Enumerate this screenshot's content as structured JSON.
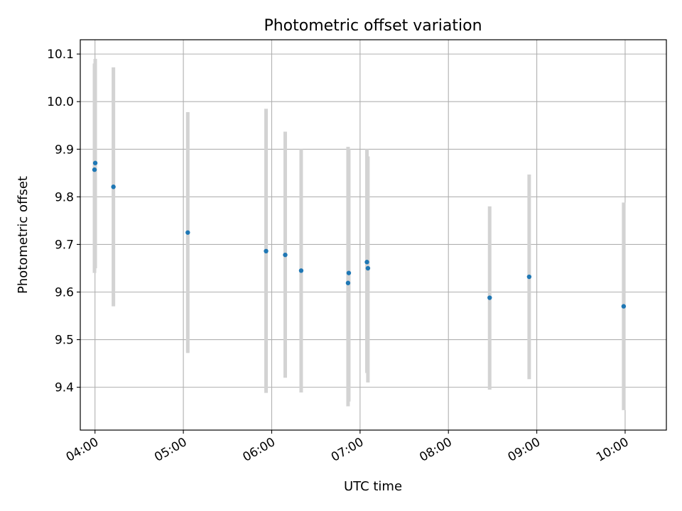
{
  "chart_data": {
    "type": "scatter",
    "title": "Photometric offset variation",
    "xlabel": "UTC time",
    "ylabel": "Photometric offset",
    "x_format": "HH:MM",
    "xlim": [
      "03:50",
      "10:28"
    ],
    "ylim": [
      9.31,
      10.13
    ],
    "x_ticks": [
      "04:00",
      "05:00",
      "06:00",
      "07:00",
      "08:00",
      "09:00",
      "10:00"
    ],
    "y_ticks": [
      9.4,
      9.5,
      9.6,
      9.7,
      9.8,
      9.9,
      10.0,
      10.1
    ],
    "y_tick_labels": [
      "9.4",
      "9.5",
      "9.6",
      "9.7",
      "9.8",
      "9.9",
      "10.0",
      "10.1"
    ],
    "grid": true,
    "point_color": "#1f77b4",
    "errorbar_color": "#d3d3d3",
    "points": [
      {
        "x": "03:59:40",
        "y": 9.857,
        "ylow": 9.64,
        "yhigh": 10.08
      },
      {
        "x": "04:00:10",
        "y": 9.871,
        "ylow": 9.65,
        "yhigh": 10.09
      },
      {
        "x": "04:12:30",
        "y": 9.821,
        "ylow": 9.57,
        "yhigh": 10.072
      },
      {
        "x": "05:03:00",
        "y": 9.725,
        "ylow": 9.472,
        "yhigh": 9.978
      },
      {
        "x": "05:56:10",
        "y": 9.686,
        "ylow": 9.388,
        "yhigh": 9.985
      },
      {
        "x": "06:09:10",
        "y": 9.678,
        "ylow": 9.42,
        "yhigh": 9.937
      },
      {
        "x": "06:20:00",
        "y": 9.645,
        "ylow": 9.389,
        "yhigh": 9.9
      },
      {
        "x": "06:51:50",
        "y": 9.619,
        "ylow": 9.36,
        "yhigh": 9.905
      },
      {
        "x": "06:52:20",
        "y": 9.64,
        "ylow": 9.37,
        "yhigh": 9.9
      },
      {
        "x": "07:04:40",
        "y": 9.663,
        "ylow": 9.43,
        "yhigh": 9.9
      },
      {
        "x": "07:05:20",
        "y": 9.65,
        "ylow": 9.41,
        "yhigh": 9.885
      },
      {
        "x": "08:28:00",
        "y": 9.588,
        "ylow": 9.395,
        "yhigh": 9.78
      },
      {
        "x": "08:54:50",
        "y": 9.632,
        "ylow": 9.417,
        "yhigh": 9.847
      },
      {
        "x": "09:59:00",
        "y": 9.57,
        "ylow": 9.352,
        "yhigh": 9.788
      }
    ]
  }
}
